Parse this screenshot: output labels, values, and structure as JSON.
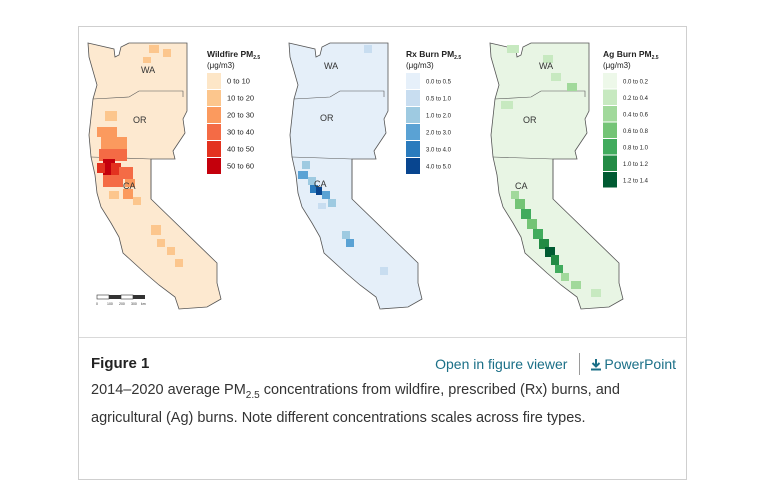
{
  "figure": {
    "label": "Figure 1",
    "open_viewer_label": "Open in figure viewer",
    "powerpoint_label": "PowerPoint",
    "caption_before": "2014–2020 average PM",
    "caption_sub": "2.5",
    "caption_after": " concentrations from wildfire, prescribed (Rx) burns, and agricultural (Ag) burns. Note different concentrations scales across fire types."
  },
  "maps": [
    {
      "legend_title": "Wildfire PM",
      "legend_title_sub": "2.5",
      "legend_units": "(μg/m3)",
      "state_labels": [
        "WA",
        "OR",
        "CA"
      ],
      "land_color": "#fde9d0",
      "legend": [
        {
          "label": "0 to 10",
          "color": "#fde6c7"
        },
        {
          "label": "10 to 20",
          "color": "#fcc68d"
        },
        {
          "label": "20 to 30",
          "color": "#fb9a5e"
        },
        {
          "label": "30 to 40",
          "color": "#f46b45"
        },
        {
          "label": "40 to 50",
          "color": "#e3321f"
        },
        {
          "label": "50 to 60",
          "color": "#c4000c"
        }
      ]
    },
    {
      "legend_title": "Rx Burn PM",
      "legend_title_sub": "2.5",
      "legend_units": "(μg/m3)",
      "state_labels": [
        "WA",
        "OR",
        "CA"
      ],
      "land_color": "#e5eff9",
      "legend": [
        {
          "label": "0.0 to 0.5",
          "color": "#e6f0fa"
        },
        {
          "label": "0.5 to 1.0",
          "color": "#c8ddf0"
        },
        {
          "label": "1.0 to 2.0",
          "color": "#9ecae1"
        },
        {
          "label": "2.0 to 3.0",
          "color": "#5aa2d4"
        },
        {
          "label": "3.0 to 4.0",
          "color": "#2a7bbd"
        },
        {
          "label": "4.0 to 5.0",
          "color": "#08458f"
        }
      ]
    },
    {
      "legend_title": "Ag Burn PM",
      "legend_title_sub": "2.5",
      "legend_units": "(μg/m3)",
      "state_labels": [
        "WA",
        "OR",
        "CA"
      ],
      "land_color": "#e8f5e4",
      "legend": [
        {
          "label": "0.0 to 0.2",
          "color": "#edf8e9"
        },
        {
          "label": "0.2 to 0.4",
          "color": "#c7e9c0"
        },
        {
          "label": "0.4 to 0.6",
          "color": "#a1d99b"
        },
        {
          "label": "0.6 to 0.8",
          "color": "#74c476"
        },
        {
          "label": "0.8 to 1.0",
          "color": "#41ab5d"
        },
        {
          "label": "1.0 to 1.2",
          "color": "#238b45"
        },
        {
          "label": "1.2 to 1.4",
          "color": "#005a32"
        }
      ]
    }
  ],
  "scale_bar": {
    "ticks": [
      "0",
      "100",
      "200",
      "300"
    ],
    "unit": "km"
  }
}
